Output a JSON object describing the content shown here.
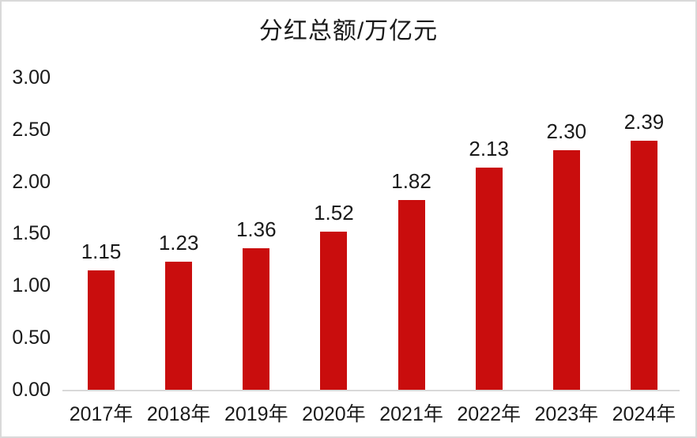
{
  "page": {
    "background": "#ffffff",
    "frame_border_color": "#d9d9d9"
  },
  "chart_data": {
    "type": "bar",
    "title": "分红总额/万亿元",
    "title_color": "#1a1a1a",
    "text_color": "#1a1a1a",
    "bar_color": "#c90d0d",
    "axis_line_color": "#d9d9d9",
    "grid": false,
    "categories": [
      "2017年",
      "2018年",
      "2019年",
      "2020年",
      "2021年",
      "2022年",
      "2023年",
      "2024年"
    ],
    "values": [
      1.15,
      1.23,
      1.36,
      1.52,
      1.82,
      2.13,
      2.3,
      2.39
    ],
    "data_labels": [
      "1.15",
      "1.23",
      "1.36",
      "1.52",
      "1.82",
      "2.13",
      "2.30",
      "2.39"
    ],
    "xlabel": "",
    "ylabel": "",
    "ylim": [
      0.0,
      3.0
    ],
    "yticks": [
      {
        "value": 3.0,
        "label": "3.00"
      },
      {
        "value": 2.5,
        "label": "2.50"
      },
      {
        "value": 2.0,
        "label": "2.00"
      },
      {
        "value": 1.5,
        "label": "1.50"
      },
      {
        "value": 1.0,
        "label": "1.00"
      },
      {
        "value": 0.5,
        "label": "0.50"
      },
      {
        "value": 0.0,
        "label": "0.00"
      }
    ]
  }
}
